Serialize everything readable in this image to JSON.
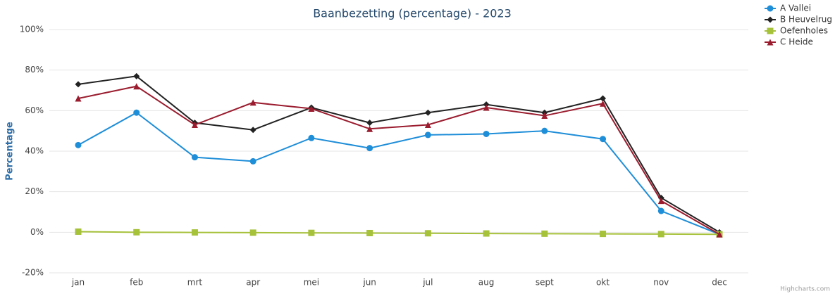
{
  "chart_data": {
    "type": "line",
    "title": "Baanbezetting (percentage) - 2023",
    "y_axis_label": "Percentage",
    "credit": "Highcharts.com",
    "categories": [
      "jan",
      "feb",
      "mrt",
      "apr",
      "mei",
      "jun",
      "jul",
      "aug",
      "sept",
      "okt",
      "nov",
      "dec"
    ],
    "series": [
      {
        "name": "A Vallei",
        "color": "#1f8ed8",
        "symbol": "circle",
        "values": [
          43,
          59,
          37,
          35,
          46.5,
          41.5,
          48,
          48.5,
          50,
          46,
          10.5,
          -1
        ]
      },
      {
        "name": "B Heuvelrug",
        "color": "#222222",
        "symbol": "diamond",
        "values": [
          73,
          77,
          54,
          50.5,
          61.5,
          54,
          59,
          63,
          59,
          66,
          17,
          0
        ]
      },
      {
        "name": "Oefenholes",
        "color": "#a6c13a",
        "symbol": "square",
        "values": [
          0.3,
          0,
          -0.1,
          -0.2,
          -0.3,
          -0.4,
          -0.5,
          -0.6,
          -0.7,
          -0.8,
          -0.9,
          -1
        ]
      },
      {
        "name": "C Heide",
        "color": "#9a1c2e",
        "symbol": "triangle",
        "values": [
          66,
          72,
          53,
          64,
          61,
          51,
          53,
          61.5,
          57.5,
          63.5,
          15.5,
          -1
        ]
      }
    ],
    "ylim": [
      -20,
      100
    ],
    "yticks": [
      {
        "value": -20,
        "label": "-20%"
      },
      {
        "value": 0,
        "label": "0%"
      },
      {
        "value": 20,
        "label": "20%"
      },
      {
        "value": 40,
        "label": "40%"
      },
      {
        "value": 60,
        "label": "60%"
      },
      {
        "value": 80,
        "label": "80%"
      },
      {
        "value": 100,
        "label": "100%"
      }
    ],
    "grid": true,
    "legend": "top-right"
  }
}
